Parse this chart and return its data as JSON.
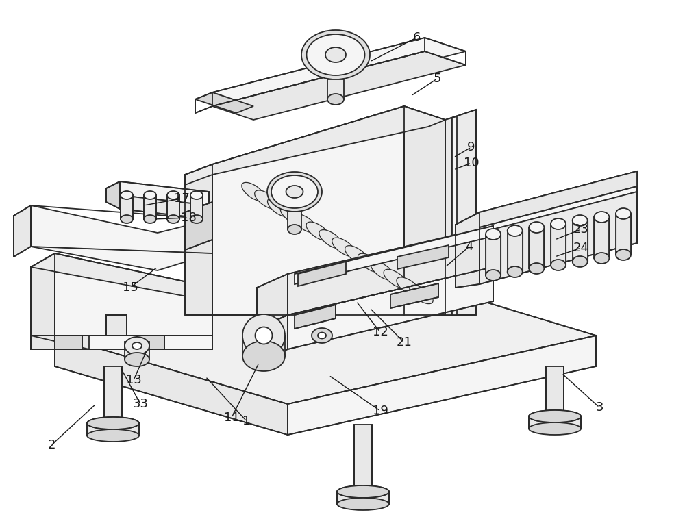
{
  "bg_color": "#ffffff",
  "line_color": "#2a2a2a",
  "line_width": 1.3,
  "annotation_color": "#1a1a1a",
  "annotation_fontsize": 13,
  "fig_width": 10.0,
  "fig_height": 7.74,
  "fill_light": "#f5f5f5",
  "fill_mid": "#e8e8e8",
  "fill_dark": "#d8d8d8",
  "fill_white": "#ffffff"
}
